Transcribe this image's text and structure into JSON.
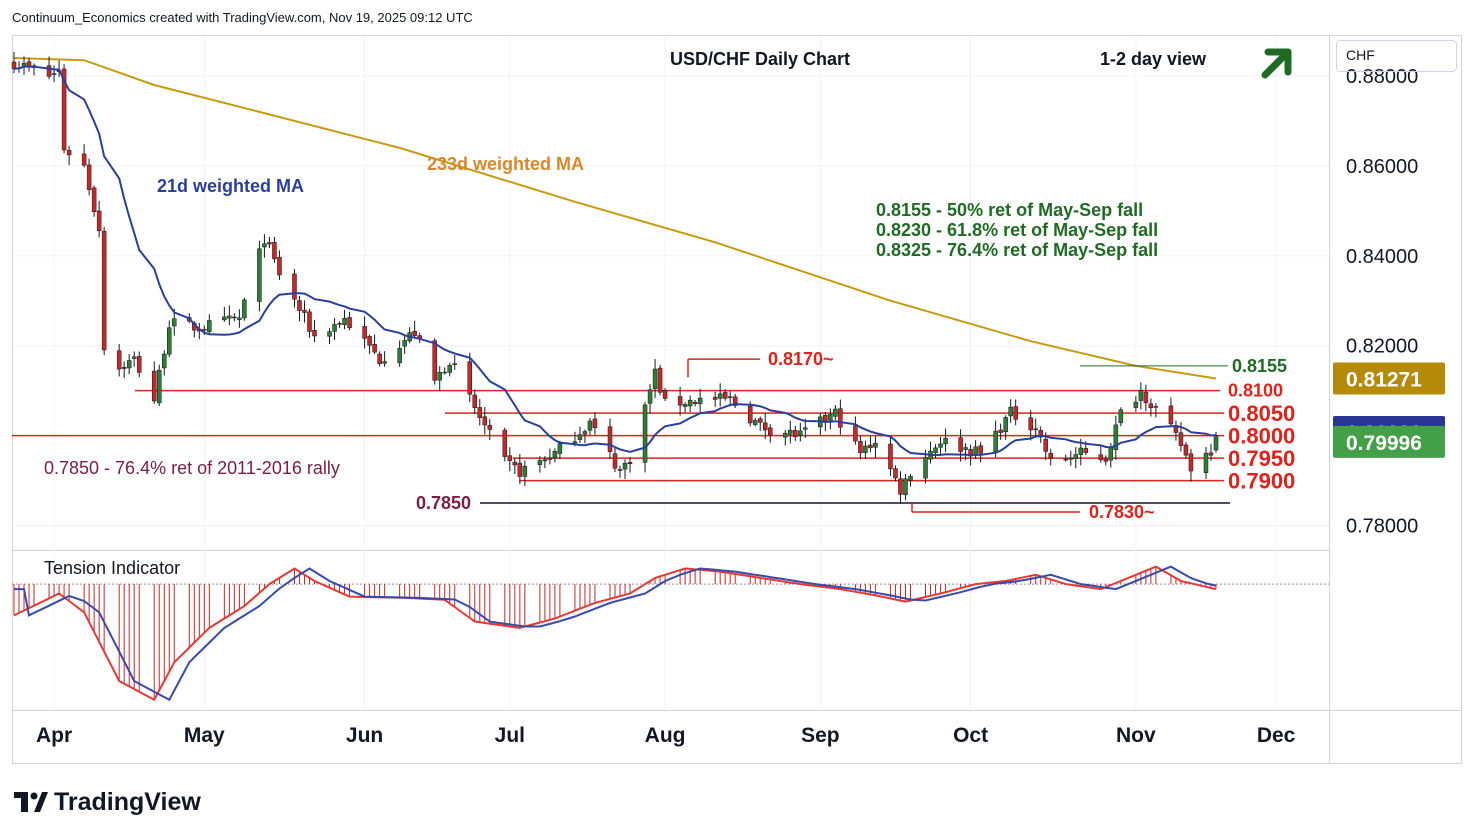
{
  "header": {
    "credit": "Continuum_Economics created with TradingView.com, Nov 19, 2025 09:12 UTC",
    "brand": "TradingView"
  },
  "colors": {
    "up": "#2e7d32",
    "down": "#c62828",
    "ma21": "#2a3f9d",
    "ma233": "#c89a14",
    "level": "#e0221b",
    "fib_text": "#1f6b24",
    "rally_text": "#7a1e45"
  },
  "chart_data": [
    {
      "type": "candlestick",
      "title": "USD/CHF Daily Chart",
      "view_label": "1-2 day view",
      "view_icon": "up-right-arrow-icon",
      "currency": "CHF",
      "ylim": [
        0.775,
        0.888
      ],
      "yticks": [
        "0.88000",
        "0.86000",
        "0.84000",
        "0.82000",
        "0.78000"
      ],
      "x_months": [
        "Apr",
        "May",
        "Jun",
        "Jul",
        "Aug",
        "Sep",
        "Oct",
        "Nov",
        "Dec"
      ],
      "x_range": [
        "2025-03-24",
        "2025-11-21"
      ],
      "price_badges": [
        {
          "value": "0.81271",
          "color": "#b58a08"
        },
        {
          "value": "0.80020",
          "color": "#283593"
        },
        {
          "value": "0.79996",
          "color": "#43a047"
        }
      ],
      "ma_labels": {
        "ma21": "21d weighted MA",
        "ma233": "233d weighted MA"
      },
      "fib_notes": [
        "0.8155 - 50% ret of May-Sep fall",
        "0.8230 - 61.8% ret of May-Sep fall",
        "0.8325 - 76.4% ret of May-Sep fall"
      ],
      "rally_note": "0.7850 - 76.4% ret of 2011-2016 rally",
      "levels": [
        {
          "label": "0.8155",
          "value": 0.8155,
          "color": "#1f6b24"
        },
        {
          "label": "0.8100",
          "value": 0.81,
          "color": "#e0221b"
        },
        {
          "label": "0.8050",
          "value": 0.805,
          "color": "#e0221b"
        },
        {
          "label": "0.8000",
          "value": 0.8,
          "color": "#e0221b"
        },
        {
          "label": "0.7950",
          "value": 0.795,
          "color": "#e0221b"
        },
        {
          "label": "0.7900",
          "value": 0.79,
          "color": "#e0221b"
        },
        {
          "label": "0.8170~",
          "value": 0.817,
          "color": "#e0221b"
        },
        {
          "label": "0.7830~",
          "value": 0.783,
          "color": "#e0221b"
        },
        {
          "label": "0.7850",
          "value": 0.785,
          "color": "#7a1e45"
        }
      ],
      "anchors": [
        {
          "d": "2025-03-24",
          "c": 0.883
        },
        {
          "d": "2025-03-31",
          "c": 0.88
        },
        {
          "d": "2025-04-02",
          "c": 0.881
        },
        {
          "d": "2025-04-03",
          "c": 0.864
        },
        {
          "d": "2025-04-07",
          "c": 0.86
        },
        {
          "d": "2025-04-10",
          "c": 0.846
        },
        {
          "d": "2025-04-11",
          "c": 0.82
        },
        {
          "d": "2025-04-14",
          "c": 0.815
        },
        {
          "d": "2025-04-17",
          "c": 0.817
        },
        {
          "d": "2025-04-21",
          "c": 0.808
        },
        {
          "d": "2025-04-24",
          "c": 0.825
        },
        {
          "d": "2025-04-30",
          "c": 0.824
        },
        {
          "d": "2025-05-08",
          "c": 0.826
        },
        {
          "d": "2025-05-13",
          "c": 0.844
        },
        {
          "d": "2025-05-16",
          "c": 0.836
        },
        {
          "d": "2025-05-23",
          "c": 0.822
        },
        {
          "d": "2025-05-29",
          "c": 0.826
        },
        {
          "d": "2025-06-05",
          "c": 0.817
        },
        {
          "d": "2025-06-12",
          "c": 0.823
        },
        {
          "d": "2025-06-16",
          "c": 0.812
        },
        {
          "d": "2025-06-19",
          "c": 0.817
        },
        {
          "d": "2025-06-24",
          "c": 0.806
        },
        {
          "d": "2025-06-30",
          "c": 0.794
        },
        {
          "d": "2025-07-03",
          "c": 0.792
        },
        {
          "d": "2025-07-10",
          "c": 0.796
        },
        {
          "d": "2025-07-17",
          "c": 0.803
        },
        {
          "d": "2025-07-23",
          "c": 0.792
        },
        {
          "d": "2025-07-25",
          "c": 0.795
        },
        {
          "d": "2025-07-30",
          "c": 0.814
        },
        {
          "d": "2025-08-01",
          "c": 0.807
        },
        {
          "d": "2025-08-08",
          "c": 0.808
        },
        {
          "d": "2025-08-14",
          "c": 0.808
        },
        {
          "d": "2025-08-20",
          "c": 0.802
        },
        {
          "d": "2025-08-28",
          "c": 0.8
        },
        {
          "d": "2025-09-04",
          "c": 0.805
        },
        {
          "d": "2025-09-09",
          "c": 0.796
        },
        {
          "d": "2025-09-12",
          "c": 0.799
        },
        {
          "d": "2025-09-17",
          "c": 0.788
        },
        {
          "d": "2025-09-19",
          "c": 0.792
        },
        {
          "d": "2025-09-25",
          "c": 0.799
        },
        {
          "d": "2025-10-03",
          "c": 0.796
        },
        {
          "d": "2025-10-09",
          "c": 0.805
        },
        {
          "d": "2025-10-14",
          "c": 0.802
        },
        {
          "d": "2025-10-17",
          "c": 0.794
        },
        {
          "d": "2025-10-23",
          "c": 0.796
        },
        {
          "d": "2025-10-28",
          "c": 0.795
        },
        {
          "d": "2025-10-31",
          "c": 0.805
        },
        {
          "d": "2025-11-04",
          "c": 0.81
        },
        {
          "d": "2025-11-07",
          "c": 0.806
        },
        {
          "d": "2025-11-12",
          "c": 0.798
        },
        {
          "d": "2025-11-14",
          "c": 0.793
        },
        {
          "d": "2025-11-18",
          "c": 0.797
        },
        {
          "d": "2025-11-19",
          "c": 0.8
        }
      ],
      "ma233": [
        {
          "d": "2025-03-24",
          "v": 0.884
        },
        {
          "d": "2025-04-07",
          "v": 0.8835
        },
        {
          "d": "2025-04-21",
          "v": 0.878
        },
        {
          "d": "2025-05-12",
          "v": 0.872
        },
        {
          "d": "2025-06-09",
          "v": 0.864
        },
        {
          "d": "2025-07-14",
          "v": 0.852
        },
        {
          "d": "2025-08-11",
          "v": 0.843
        },
        {
          "d": "2025-09-15",
          "v": 0.83
        },
        {
          "d": "2025-10-13",
          "v": 0.821
        },
        {
          "d": "2025-11-03",
          "v": 0.8155
        },
        {
          "d": "2025-11-19",
          "v": 0.8127
        }
      ]
    },
    {
      "type": "area",
      "title": "Tension Indicator",
      "note": "oscillator histogram with signal line, zero baseline",
      "values": [
        {
          "d": "2025-03-24",
          "v": -0.5
        },
        {
          "d": "2025-04-02",
          "v": -0.15
        },
        {
          "d": "2025-04-07",
          "v": -0.45
        },
        {
          "d": "2025-04-14",
          "v": -1.55
        },
        {
          "d": "2025-04-21",
          "v": -1.85
        },
        {
          "d": "2025-04-25",
          "v": -1.25
        },
        {
          "d": "2025-05-02",
          "v": -0.7
        },
        {
          "d": "2025-05-09",
          "v": -0.35
        },
        {
          "d": "2025-05-14",
          "v": 0.0
        },
        {
          "d": "2025-05-19",
          "v": 0.25
        },
        {
          "d": "2025-05-23",
          "v": 0.05
        },
        {
          "d": "2025-05-30",
          "v": -0.2
        },
        {
          "d": "2025-06-10",
          "v": -0.22
        },
        {
          "d": "2025-06-18",
          "v": -0.25
        },
        {
          "d": "2025-06-24",
          "v": -0.6
        },
        {
          "d": "2025-07-03",
          "v": -0.7
        },
        {
          "d": "2025-07-10",
          "v": -0.55
        },
        {
          "d": "2025-07-18",
          "v": -0.3
        },
        {
          "d": "2025-07-25",
          "v": -0.15
        },
        {
          "d": "2025-07-30",
          "v": 0.1
        },
        {
          "d": "2025-08-05",
          "v": 0.25
        },
        {
          "d": "2025-08-12",
          "v": 0.2
        },
        {
          "d": "2025-08-20",
          "v": 0.1
        },
        {
          "d": "2025-08-28",
          "v": 0.0
        },
        {
          "d": "2025-09-05",
          "v": -0.08
        },
        {
          "d": "2025-09-12",
          "v": -0.18
        },
        {
          "d": "2025-09-18",
          "v": -0.28
        },
        {
          "d": "2025-09-25",
          "v": -0.15
        },
        {
          "d": "2025-10-02",
          "v": 0.0
        },
        {
          "d": "2025-10-08",
          "v": 0.05
        },
        {
          "d": "2025-10-14",
          "v": 0.15
        },
        {
          "d": "2025-10-20",
          "v": 0.0
        },
        {
          "d": "2025-10-27",
          "v": -0.08
        },
        {
          "d": "2025-11-03",
          "v": 0.15
        },
        {
          "d": "2025-11-07",
          "v": 0.28
        },
        {
          "d": "2025-11-12",
          "v": 0.05
        },
        {
          "d": "2025-11-19",
          "v": -0.08
        }
      ],
      "ylim": [
        -1.95,
        0.45
      ]
    }
  ]
}
